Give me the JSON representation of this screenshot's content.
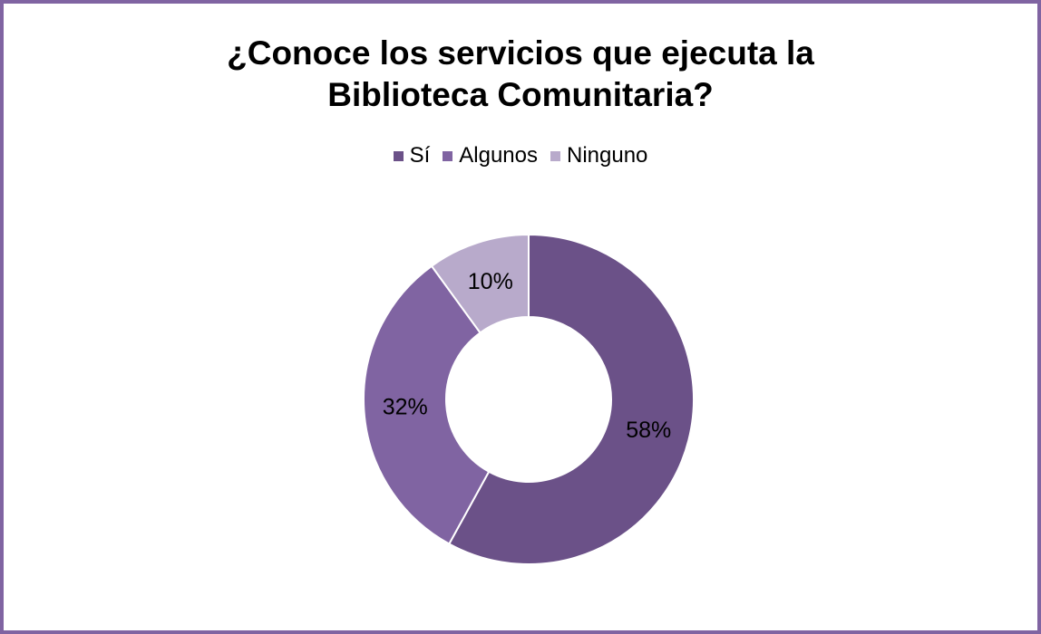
{
  "chart_data": {
    "type": "pie",
    "title": "¿Conoce los servicios que ejecuta la Biblioteca Comunitaria?",
    "title_lines": [
      "¿Conoce los servicios que ejecuta la",
      "Biblioteca Comunitaria?"
    ],
    "donut": true,
    "legend_position": "top",
    "categories": [
      "Sí",
      "Algunos",
      "Ninguno"
    ],
    "values": [
      58,
      32,
      10
    ],
    "labels": [
      "58%",
      "32%",
      "10%"
    ],
    "colors": [
      "#6b5188",
      "#8064a2",
      "#b8aacb"
    ]
  },
  "colors": {
    "border": "#8064a2"
  }
}
